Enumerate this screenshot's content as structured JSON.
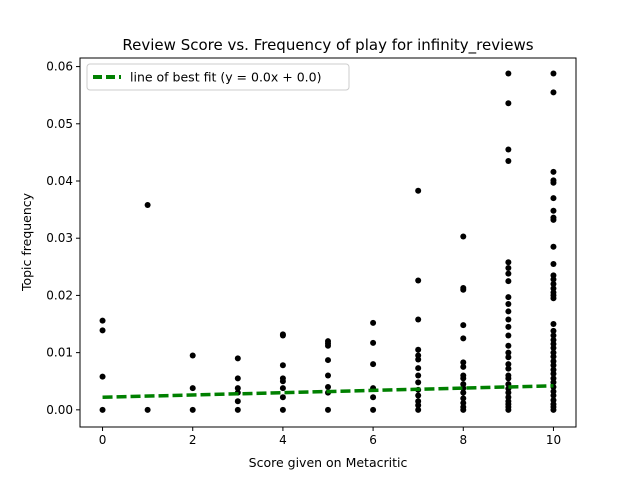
{
  "chart_data": {
    "type": "scatter",
    "title": "Review Score vs. Frequency of play for infinity_reviews",
    "xlabel": "Score given on Metacritic",
    "ylabel": "Topic frequency",
    "xlim": [
      -0.5,
      10.5
    ],
    "ylim": [
      -0.003,
      0.0615
    ],
    "xticks": [
      0,
      2,
      4,
      6,
      8,
      10
    ],
    "xtick_labels": [
      "0",
      "2",
      "4",
      "6",
      "8",
      "10"
    ],
    "yticks": [
      0.0,
      0.01,
      0.02,
      0.03,
      0.04,
      0.05,
      0.06
    ],
    "ytick_labels": [
      "0.00",
      "0.01",
      "0.02",
      "0.03",
      "0.04",
      "0.05",
      "0.06"
    ],
    "grid": false,
    "legend": {
      "placement": "top-left",
      "entries": [
        "line of best fit (y = 0.0x + 0.0)"
      ]
    },
    "colors": {
      "points": "#000000",
      "fit_line": "#008000"
    },
    "fit_line": {
      "x": [
        0,
        10
      ],
      "y": [
        0.0022,
        0.0042
      ]
    },
    "points": [
      [
        0,
        0
      ],
      [
        0,
        0.0058
      ],
      [
        0,
        0.0139
      ],
      [
        0,
        0.0156
      ],
      [
        1,
        0
      ],
      [
        1,
        0.0358
      ],
      [
        2,
        0
      ],
      [
        2,
        0.0038
      ],
      [
        2,
        0.0095
      ],
      [
        3,
        0
      ],
      [
        3,
        0.0015
      ],
      [
        3,
        0.003
      ],
      [
        3,
        0.0038
      ],
      [
        3,
        0.0055
      ],
      [
        3,
        0.009
      ],
      [
        4,
        0
      ],
      [
        4,
        0.0022
      ],
      [
        4,
        0.0038
      ],
      [
        4,
        0.005
      ],
      [
        4,
        0.0055
      ],
      [
        4,
        0.0078
      ],
      [
        4,
        0.013
      ],
      [
        4,
        0.0132
      ],
      [
        5,
        0
      ],
      [
        5,
        0.003
      ],
      [
        5,
        0.004
      ],
      [
        5,
        0.006
      ],
      [
        5,
        0.0087
      ],
      [
        5,
        0.0112
      ],
      [
        5,
        0.0116
      ],
      [
        5,
        0.012
      ],
      [
        6,
        0
      ],
      [
        6,
        0.0022
      ],
      [
        6,
        0.0038
      ],
      [
        6,
        0.008
      ],
      [
        6,
        0.0117
      ],
      [
        6,
        0.0152
      ],
      [
        7,
        0
      ],
      [
        7,
        0.0008
      ],
      [
        7,
        0.0015
      ],
      [
        7,
        0.0025
      ],
      [
        7,
        0.0035
      ],
      [
        7,
        0.0048
      ],
      [
        7,
        0.006
      ],
      [
        7,
        0.0073
      ],
      [
        7,
        0.0088
      ],
      [
        7,
        0.0095
      ],
      [
        7,
        0.0105
      ],
      [
        7,
        0.0158
      ],
      [
        7,
        0.0226
      ],
      [
        7,
        0.0383
      ],
      [
        8,
        0
      ],
      [
        8,
        0.0005
      ],
      [
        8,
        0.0012
      ],
      [
        8,
        0.002
      ],
      [
        8,
        0.003
      ],
      [
        8,
        0.0038
      ],
      [
        8,
        0.0045
      ],
      [
        8,
        0.0055
      ],
      [
        8,
        0.006
      ],
      [
        8,
        0.0075
      ],
      [
        8,
        0.0083
      ],
      [
        8,
        0.0125
      ],
      [
        8,
        0.0148
      ],
      [
        8,
        0.021
      ],
      [
        8,
        0.0213
      ],
      [
        8,
        0.0303
      ],
      [
        9,
        0
      ],
      [
        9,
        0.0005
      ],
      [
        9,
        0.001
      ],
      [
        9,
        0.0015
      ],
      [
        9,
        0.0022
      ],
      [
        9,
        0.003
      ],
      [
        9,
        0.0037
      ],
      [
        9,
        0.0045
      ],
      [
        9,
        0.0055
      ],
      [
        9,
        0.006
      ],
      [
        9,
        0.0072
      ],
      [
        9,
        0.008
      ],
      [
        9,
        0.0092
      ],
      [
        9,
        0.01
      ],
      [
        9,
        0.0112
      ],
      [
        9,
        0.013
      ],
      [
        9,
        0.0145
      ],
      [
        9,
        0.0158
      ],
      [
        9,
        0.0172
      ],
      [
        9,
        0.0185
      ],
      [
        9,
        0.0197
      ],
      [
        9,
        0.0225
      ],
      [
        9,
        0.0238
      ],
      [
        9,
        0.0248
      ],
      [
        9,
        0.0258
      ],
      [
        9,
        0.0435
      ],
      [
        9,
        0.0455
      ],
      [
        9,
        0.0536
      ],
      [
        9,
        0.0588
      ],
      [
        10,
        0
      ],
      [
        10,
        0.0005
      ],
      [
        10,
        0.001
      ],
      [
        10,
        0.0017
      ],
      [
        10,
        0.0025
      ],
      [
        10,
        0.0032
      ],
      [
        10,
        0.004
      ],
      [
        10,
        0.0048
      ],
      [
        10,
        0.0055
      ],
      [
        10,
        0.0063
      ],
      [
        10,
        0.007
      ],
      [
        10,
        0.0078
      ],
      [
        10,
        0.0085
      ],
      [
        10,
        0.0093
      ],
      [
        10,
        0.01
      ],
      [
        10,
        0.0108
      ],
      [
        10,
        0.0115
      ],
      [
        10,
        0.0122
      ],
      [
        10,
        0.013
      ],
      [
        10,
        0.0138
      ],
      [
        10,
        0.015
      ],
      [
        10,
        0.0195
      ],
      [
        10,
        0.02
      ],
      [
        10,
        0.0205
      ],
      [
        10,
        0.0212
      ],
      [
        10,
        0.022
      ],
      [
        10,
        0.0228
      ],
      [
        10,
        0.0235
      ],
      [
        10,
        0.0255
      ],
      [
        10,
        0.0285
      ],
      [
        10,
        0.0332
      ],
      [
        10,
        0.0336
      ],
      [
        10,
        0.0348
      ],
      [
        10,
        0.037
      ],
      [
        10,
        0.0397
      ],
      [
        10,
        0.0401
      ],
      [
        10,
        0.0416
      ],
      [
        10,
        0.0555
      ],
      [
        10,
        0.0588
      ]
    ]
  }
}
